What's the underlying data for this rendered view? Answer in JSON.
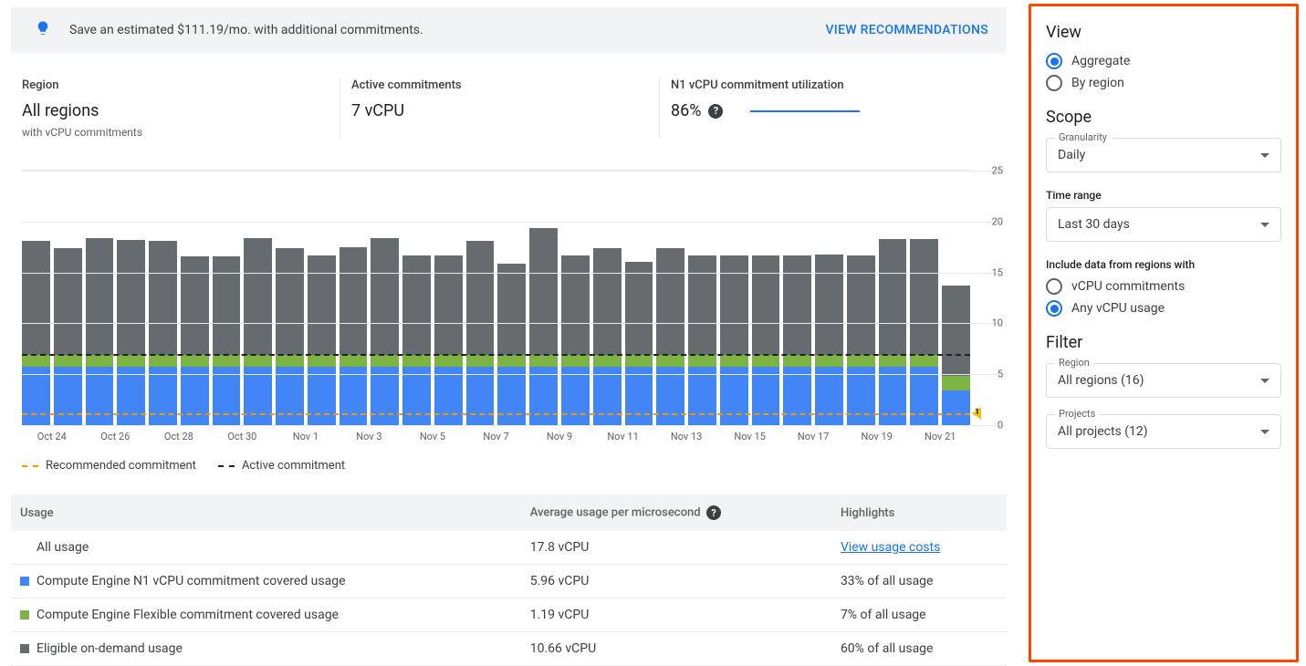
{
  "banner": {
    "text": "Save an estimated $111.19/mo. with additional commitments.",
    "cta": "VIEW RECOMMENDATIONS"
  },
  "metrics": {
    "region_label": "Region",
    "region_value": "All regions",
    "region_sub": "with vCPU commitments",
    "active_label": "Active commitments",
    "active_value": "7 vCPU",
    "util_label": "N1 vCPU commitment utilization",
    "util_value": "86%"
  },
  "chart": {
    "type": "stacked-bar",
    "y_max": 25,
    "y_ticks": [
      0,
      5,
      10,
      15,
      20,
      25
    ],
    "active_commitment_level": 7.0,
    "recommended_commitment_level": 1.2,
    "recommended_marker_label": "1",
    "series_colors": {
      "eligible_on_demand": "#666b70",
      "flexible_commitment": "#7cb342",
      "n1_commitment": "#4285f4"
    },
    "grid_color": "#e8eaed",
    "bars": [
      {
        "x": "Oct 23",
        "blue": 5.96,
        "green": 1.19,
        "grey": 11.6
      },
      {
        "x": "Oct 24",
        "blue": 5.96,
        "green": 1.19,
        "grey": 10.9
      },
      {
        "x": "Oct 25",
        "blue": 5.96,
        "green": 1.19,
        "grey": 11.9
      },
      {
        "x": "Oct 26",
        "blue": 5.96,
        "green": 1.19,
        "grey": 11.7
      },
      {
        "x": "Oct 27",
        "blue": 5.96,
        "green": 1.19,
        "grey": 11.6
      },
      {
        "x": "Oct 28",
        "blue": 5.96,
        "green": 1.19,
        "grey": 10.0
      },
      {
        "x": "Oct 29",
        "blue": 5.96,
        "green": 1.19,
        "grey": 10.0
      },
      {
        "x": "Oct 30",
        "blue": 5.96,
        "green": 1.19,
        "grey": 11.9
      },
      {
        "x": "Oct 31",
        "blue": 5.96,
        "green": 1.19,
        "grey": 10.9
      },
      {
        "x": "Nov 1",
        "blue": 5.96,
        "green": 1.19,
        "grey": 10.1
      },
      {
        "x": "Nov 2",
        "blue": 5.96,
        "green": 1.19,
        "grey": 11.0
      },
      {
        "x": "Nov 3",
        "blue": 5.96,
        "green": 1.19,
        "grey": 11.9
      },
      {
        "x": "Nov 4",
        "blue": 5.96,
        "green": 1.19,
        "grey": 10.1
      },
      {
        "x": "Nov 5",
        "blue": 5.96,
        "green": 1.19,
        "grey": 10.1
      },
      {
        "x": "Nov 6",
        "blue": 5.96,
        "green": 1.19,
        "grey": 11.6
      },
      {
        "x": "Nov 7",
        "blue": 5.96,
        "green": 1.19,
        "grey": 9.3
      },
      {
        "x": "Nov 8",
        "blue": 5.96,
        "green": 1.19,
        "grey": 12.9
      },
      {
        "x": "Nov 9",
        "blue": 5.96,
        "green": 1.19,
        "grey": 10.1
      },
      {
        "x": "Nov 10",
        "blue": 5.96,
        "green": 1.19,
        "grey": 10.9
      },
      {
        "x": "Nov 11",
        "blue": 5.96,
        "green": 1.19,
        "grey": 9.5
      },
      {
        "x": "Nov 12",
        "blue": 5.96,
        "green": 1.19,
        "grey": 10.9
      },
      {
        "x": "Nov 13",
        "blue": 5.96,
        "green": 1.19,
        "grey": 10.1
      },
      {
        "x": "Nov 14",
        "blue": 5.96,
        "green": 1.19,
        "grey": 10.1
      },
      {
        "x": "Nov 15",
        "blue": 5.96,
        "green": 1.19,
        "grey": 10.1
      },
      {
        "x": "Nov 16",
        "blue": 5.96,
        "green": 1.19,
        "grey": 10.1
      },
      {
        "x": "Nov 17",
        "blue": 5.96,
        "green": 1.19,
        "grey": 10.2
      },
      {
        "x": "Nov 18",
        "blue": 5.96,
        "green": 1.19,
        "grey": 10.1
      },
      {
        "x": "Nov 19",
        "blue": 5.96,
        "green": 1.19,
        "grey": 11.8
      },
      {
        "x": "Nov 20",
        "blue": 5.96,
        "green": 1.19,
        "grey": 11.8
      },
      {
        "x": "Nov 21",
        "blue": 3.5,
        "green": 1.5,
        "grey": 9.2
      }
    ],
    "x_labels": [
      "Oct 24",
      "Oct 26",
      "Oct 28",
      "Oct 30",
      "Nov 1",
      "Nov 3",
      "Nov 5",
      "Nov 7",
      "Nov 9",
      "Nov 11",
      "Nov 13",
      "Nov 15",
      "Nov 17",
      "Nov 19",
      "Nov 21"
    ],
    "legend": {
      "recommended": "Recommended commitment",
      "active": "Active commitment"
    }
  },
  "table": {
    "headers": {
      "usage": "Usage",
      "avg": "Average usage per microsecond",
      "highlights": "Highlights"
    },
    "rows": [
      {
        "swatch": null,
        "name": "All usage",
        "avg": "17.8 vCPU",
        "highlight": "View usage costs",
        "highlight_is_link": true
      },
      {
        "swatch": "#4285f4",
        "name": "Compute Engine N1 vCPU commitment covered usage",
        "avg": "5.96 vCPU",
        "highlight": "33% of all usage",
        "highlight_is_link": false
      },
      {
        "swatch": "#7cb342",
        "name": "Compute Engine Flexible commitment covered usage",
        "avg": "1.19 vCPU",
        "highlight": "7% of all usage",
        "highlight_is_link": false
      },
      {
        "swatch": "#666b70",
        "name": "Eligible on-demand usage",
        "avg": "10.66 vCPU",
        "highlight": "60% of all usage",
        "highlight_is_link": false
      }
    ]
  },
  "sidebar": {
    "view_title": "View",
    "view_options": {
      "aggregate": "Aggregate",
      "by_region": "By region"
    },
    "view_selected": "aggregate",
    "scope_title": "Scope",
    "granularity_label": "Granularity",
    "granularity_value": "Daily",
    "timerange_label": "Time range",
    "timerange_value": "Last 30 days",
    "include_label": "Include data from regions with",
    "include_options": {
      "commitments": "vCPU commitments",
      "any_usage": "Any vCPU usage"
    },
    "include_selected": "any_usage",
    "filter_title": "Filter",
    "region_label": "Region",
    "region_value": "All regions (16)",
    "projects_label": "Projects",
    "projects_value": "All projects (12)"
  }
}
